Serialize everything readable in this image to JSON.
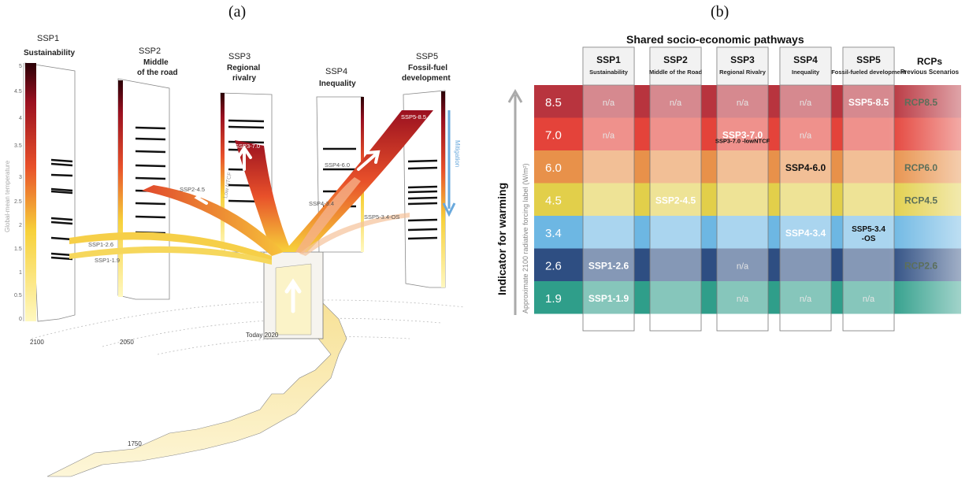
{
  "panel_a": {
    "label": "(a)",
    "ssps": [
      {
        "code": "SSP1",
        "name": "Sustainability"
      },
      {
        "code": "SSP2",
        "name": "Middle of the road"
      },
      {
        "code": "SSP3",
        "name": "Regional rivalry"
      },
      {
        "code": "SSP4",
        "name": "Inequality"
      },
      {
        "code": "SSP5",
        "name": "Fossil-fuel development"
      }
    ],
    "axis_label": "Global-mean temperature",
    "axis_ticks": [
      "0",
      "0.5",
      "1",
      "1.5",
      "2",
      "2.5",
      "3",
      "3.5",
      "4",
      "4.5",
      "5"
    ],
    "scenario_labels": [
      "SSP5-8.5",
      "SSP3-7.0",
      "SSP2-4.5",
      "SSP4-6.0",
      "SSP4-3.4",
      "SSP5-3.4-OS",
      "SSP1-2.6",
      "SSP1-1.9"
    ],
    "lowntcf": "Low NTCF",
    "mitigation": "Mitigation",
    "years": [
      "2100",
      "2050",
      "Today 2020",
      "1750"
    ]
  },
  "panel_b": {
    "label": "(b)",
    "title": "Shared socio-economic pathways",
    "y_axis_title": "Indicator for warming",
    "y_axis_sub": "Approximate 2100 radiative forcing label (W/m²)",
    "columns": [
      {
        "code": "SSP1",
        "name": "Sustainability"
      },
      {
        "code": "SSP2",
        "name": "Middle of the Road"
      },
      {
        "code": "SSP3",
        "name": "Regional Rivalry"
      },
      {
        "code": "SSP4",
        "name": "Inequality"
      },
      {
        "code": "SSP5",
        "name": "Fossil-fueled development"
      }
    ],
    "rcp_header": {
      "title": "RCPs",
      "sub": "Previous Scenarios"
    },
    "rows": [
      {
        "forcing": "8.5",
        "color": "#b8343e",
        "cells": [
          "n/a",
          "n/a",
          "n/a",
          "n/a",
          "SSP5-8.5"
        ],
        "rcp": "RCP8.5"
      },
      {
        "forcing": "7.0",
        "color": "#e4433a",
        "cells": [
          "n/a",
          "",
          "SSP3-7.0",
          "n/a",
          ""
        ],
        "rcp": ""
      },
      {
        "forcing": "6.0",
        "color": "#e8914a",
        "cells": [
          "",
          "",
          "",
          "SSP4-6.0",
          ""
        ],
        "rcp": "RCP6.0"
      },
      {
        "forcing": "4.5",
        "color": "#e2cf4a",
        "cells": [
          "",
          "SSP2-4.5",
          "",
          "",
          ""
        ],
        "rcp": "RCP4.5"
      },
      {
        "forcing": "3.4",
        "color": "#6db7e3",
        "cells": [
          "",
          "",
          "",
          "SSP4-3.4",
          "SSP5-3.4 -OS"
        ],
        "rcp": ""
      },
      {
        "forcing": "2.6",
        "color": "#2e4e82",
        "cells": [
          "SSP1-2.6",
          "",
          "n/a",
          "",
          ""
        ],
        "rcp": "RCP2.6"
      },
      {
        "forcing": "1.9",
        "color": "#2f9e8a",
        "cells": [
          "SSP1-1.9",
          "",
          "n/a",
          "n/a",
          "n/a"
        ],
        "rcp": ""
      }
    ],
    "extra_note": "SSP3-7.0 -lowNTCF"
  }
}
